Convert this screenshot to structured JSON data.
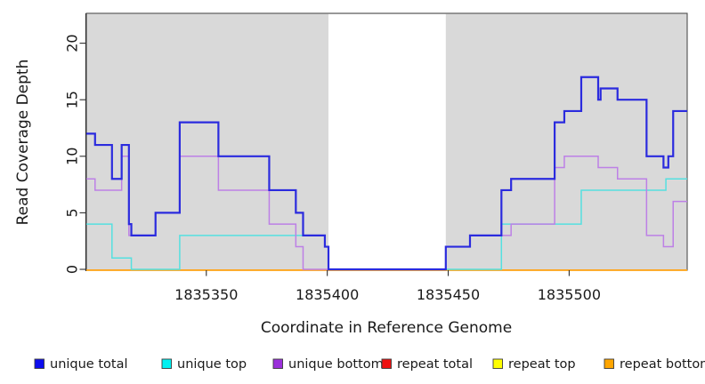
{
  "page": {
    "background": "#ffffff"
  },
  "chart_data": {
    "type": "step-line",
    "title": "",
    "xlabel": "Coordinate in Reference Genome",
    "ylabel": "Read Coverage Depth",
    "x_domain": [
      1835300.4,
      1835548.8
    ],
    "ylim": [
      0,
      22.7
    ],
    "x_ticks": [
      1835350,
      1835400,
      1835450,
      1835500
    ],
    "y_ticks": [
      0,
      5,
      10,
      15,
      20
    ],
    "grid": false,
    "legend_position": "bottom",
    "plot_bg_color": "#D9D9D9",
    "gap_color": "#FFFFFF",
    "box_color": "#4F4F4F",
    "axis_color": "#2E2E2E",
    "gap_region": {
      "start": 1835400.5,
      "end": 1835449
    },
    "draw_order": [
      "repeat total",
      "repeat top",
      "repeat bottom",
      "unique top",
      "unique bottom",
      "unique total"
    ],
    "series": [
      {
        "name": "unique total",
        "swatch": "#0D0DEE",
        "line": "#2B2BDE",
        "width": 2.2,
        "steps": [
          [
            1835300,
            12
          ],
          [
            1835304,
            11
          ],
          [
            1835311,
            8
          ],
          [
            1835315,
            11
          ],
          [
            1835318,
            4
          ],
          [
            1835319,
            3
          ],
          [
            1835329,
            5
          ],
          [
            1835339,
            13
          ],
          [
            1835355,
            10
          ],
          [
            1835376,
            7
          ],
          [
            1835387,
            5
          ],
          [
            1835390,
            3
          ],
          [
            1835399,
            2
          ],
          [
            1835400.5,
            0
          ],
          [
            1835449,
            2
          ],
          [
            1835459,
            3
          ],
          [
            1835472,
            7
          ],
          [
            1835476,
            8
          ],
          [
            1835494,
            13
          ],
          [
            1835498,
            14
          ],
          [
            1835505,
            17
          ],
          [
            1835512,
            15
          ],
          [
            1835513,
            16
          ],
          [
            1835520,
            15
          ],
          [
            1835532,
            10
          ],
          [
            1835539,
            9
          ],
          [
            1835541,
            10
          ],
          [
            1835543,
            14
          ]
        ]
      },
      {
        "name": "unique top",
        "swatch": "#00F0F0",
        "line": "#55E0E0",
        "width": 1.5,
        "steps": [
          [
            1835300,
            4
          ],
          [
            1835311,
            1
          ],
          [
            1835319,
            0
          ],
          [
            1835339,
            3
          ],
          [
            1835399,
            2
          ],
          [
            1835400.5,
            0
          ],
          [
            1835472,
            4
          ],
          [
            1835505,
            7
          ],
          [
            1835540,
            8
          ]
        ]
      },
      {
        "name": "unique bottom",
        "swatch": "#9B30DB",
        "line": "#BD80E6",
        "width": 1.5,
        "steps": [
          [
            1835300,
            8
          ],
          [
            1835304,
            7
          ],
          [
            1835315,
            10
          ],
          [
            1835318,
            3
          ],
          [
            1835329,
            5
          ],
          [
            1835339,
            10
          ],
          [
            1835355,
            7
          ],
          [
            1835376,
            4
          ],
          [
            1835387,
            2
          ],
          [
            1835390,
            0
          ],
          [
            1835449,
            2
          ],
          [
            1835459,
            3
          ],
          [
            1835476,
            4
          ],
          [
            1835494,
            9
          ],
          [
            1835498,
            10
          ],
          [
            1835512,
            9
          ],
          [
            1835520,
            8
          ],
          [
            1835532,
            3
          ],
          [
            1835539,
            2
          ],
          [
            1835543,
            6
          ]
        ]
      },
      {
        "name": "repeat total",
        "swatch": "#EE1111",
        "line": "#EE3333",
        "width": 1.5,
        "steps": [
          [
            1835300,
            0
          ]
        ]
      },
      {
        "name": "repeat top",
        "swatch": "#FFFF00",
        "line": "#FFFF00",
        "width": 1.5,
        "steps": [
          [
            1835300,
            0
          ]
        ]
      },
      {
        "name": "repeat bottom",
        "swatch": "#FFA500",
        "line": "#FFA51C",
        "width": 1.8,
        "steps": [
          [
            1835300,
            0
          ]
        ]
      }
    ]
  }
}
